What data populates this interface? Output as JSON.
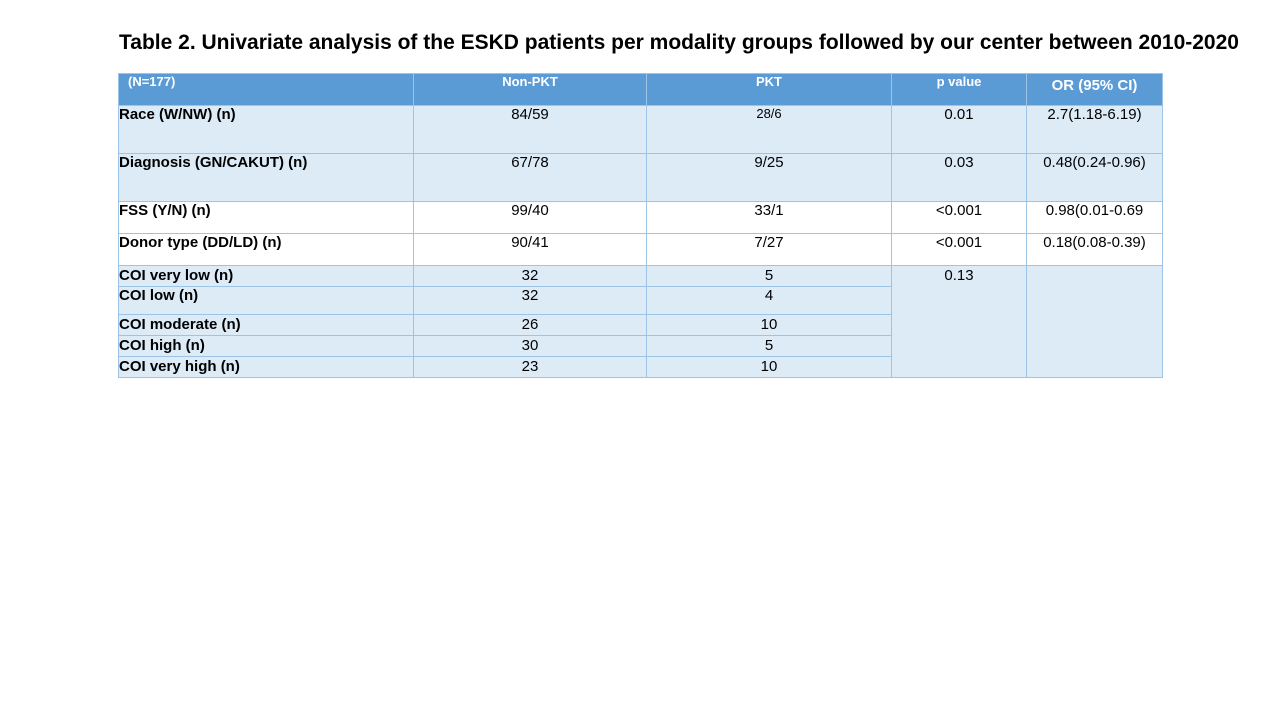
{
  "title": "Table 2. Univariate analysis of the ESKD patients per modality groups followed by our center between 2010-2020",
  "table": {
    "headers": [
      "(N=177)",
      "Non-PKT",
      "PKT",
      "p value",
      "OR (95% CI)"
    ],
    "rows": [
      {
        "label": "Race (W/NW)  (n)",
        "non_pkt": "84/59",
        "pkt": "28/6",
        "p": "0.01",
        "or": "2.7(1.18-6.19)"
      },
      {
        "label": "Diagnosis (GN/CAKUT) (n)",
        "non_pkt": "67/78",
        "pkt": "9/25",
        "p": "0.03",
        "or": "0.48(0.24-0.96)"
      },
      {
        "label": "FSS (Y/N) (n)",
        "non_pkt": "99/40",
        "pkt": "33/1",
        "p": "<0.001",
        "or": "0.98(0.01-0.69"
      },
      {
        "label": "Donor type (DD/LD) (n)",
        "non_pkt": "90/41",
        "pkt": "7/27",
        "p": "<0.001",
        "or": "0.18(0.08-0.39)"
      },
      {
        "label": "COI very low (n)",
        "non_pkt": "32",
        "pkt": "5"
      },
      {
        "label": "COI low (n)",
        "non_pkt": "32",
        "pkt": "4"
      },
      {
        "label": "COI moderate (n)",
        "non_pkt": "26",
        "pkt": "10"
      },
      {
        "label": "COI high (n)",
        "non_pkt": "30",
        "pkt": "5"
      },
      {
        "label": "COI very high (n)",
        "non_pkt": "23",
        "pkt": "10"
      }
    ],
    "coi_p_value": "0.13"
  }
}
